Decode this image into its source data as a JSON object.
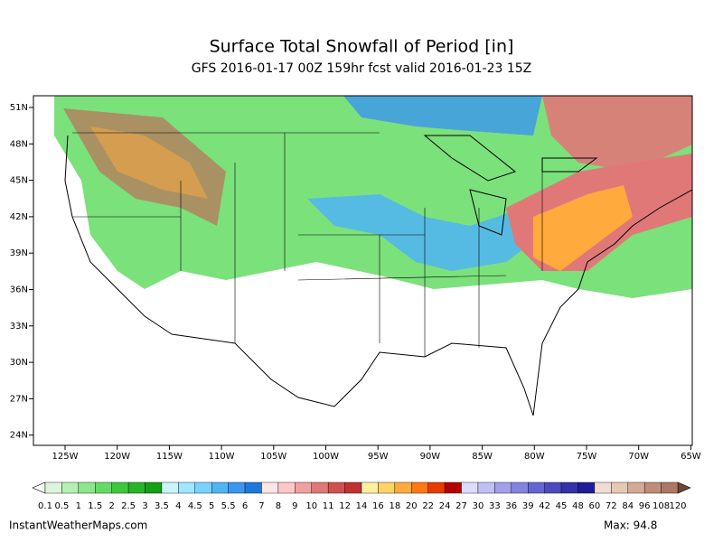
{
  "header": {
    "title": "Surface Total Snowfall of Period [in]",
    "subtitle": "GFS 2016-01-17 00Z 159hr fcst valid 2016-01-23 15Z"
  },
  "map": {
    "lat_labels": [
      "51N",
      "48N",
      "45N",
      "42N",
      "39N",
      "36N",
      "33N",
      "30N",
      "27N",
      "24N"
    ],
    "lon_labels": [
      "125W",
      "120W",
      "115W",
      "110W",
      "105W",
      "100W",
      "95W",
      "90W",
      "85W",
      "80W",
      "75W",
      "70W",
      "65W"
    ]
  },
  "colorbar": {
    "labels": [
      "0.1",
      "0.5",
      "1",
      "1.5",
      "2",
      "2.5",
      "3",
      "3.5",
      "4",
      "4.5",
      "5",
      "5.5",
      "6",
      "7",
      "8",
      "9",
      "10",
      "11",
      "12",
      "14",
      "16",
      "18",
      "20",
      "22",
      "24",
      "27",
      "30",
      "33",
      "36",
      "39",
      "42",
      "45",
      "48",
      "60",
      "72",
      "84",
      "96",
      "108",
      "120"
    ],
    "colors": [
      "#dcf5dc",
      "#b4f0b4",
      "#8ce68c",
      "#64dc64",
      "#3cc83c",
      "#28b428",
      "#14a014",
      "#c8f5ff",
      "#a0e6ff",
      "#78d2ff",
      "#50b4f5",
      "#3c96f0",
      "#1e78dc",
      "#ffe6e6",
      "#ffc8c8",
      "#f0a0a0",
      "#e07878",
      "#d05050",
      "#c03232",
      "#fff0a0",
      "#ffd264",
      "#ffaa3c",
      "#ff7814",
      "#e63c00",
      "#b40000",
      "#dcdcff",
      "#c0c0f5",
      "#a0a0eb",
      "#8282e1",
      "#6464d2",
      "#4b4bbe",
      "#3232aa",
      "#1e1e96",
      "#f0dcd2",
      "#e6c8b4",
      "#d2aa96",
      "#be8c78",
      "#aa7864"
    ]
  },
  "footer": {
    "site": "InstantWeatherMaps.com",
    "max": "Max:  94.8"
  }
}
